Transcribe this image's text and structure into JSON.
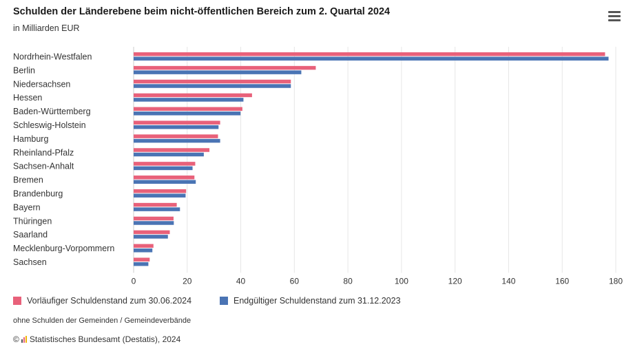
{
  "header": {
    "title": "Schulden der Länderebene beim nicht-öffentlichen Bereich zum 2. Quartal 2024",
    "subtitle": "in Milliarden EUR"
  },
  "colors": {
    "series1": "#e8617a",
    "series2": "#4a74b4",
    "grid": "#e6e6e6",
    "axis": "#999999"
  },
  "chart_data": {
    "type": "bar",
    "orientation": "horizontal",
    "categories": [
      "Nordrhein-Westfalen",
      "Berlin",
      "Niedersachsen",
      "Hessen",
      "Baden-Württemberg",
      "Schleswig-Holstein",
      "Hamburg",
      "Rheinland-Pfalz",
      "Sachsen-Anhalt",
      "Bremen",
      "Brandenburg",
      "Bayern",
      "Thüringen",
      "Saarland",
      "Mecklenburg-Vorpommern",
      "Sachsen"
    ],
    "series": [
      {
        "name": "Vorläufiger Schuldenstand zum 30.06.2024",
        "color": "#e8617a",
        "values": [
          176,
          68,
          58.7,
          44.2,
          40.6,
          32.3,
          31.5,
          28.3,
          23,
          22.7,
          19.6,
          16.1,
          14.9,
          13.5,
          7.4,
          6
        ]
      },
      {
        "name": "Endgültiger Schuldenstand zum 31.12.2023",
        "color": "#4a74b4",
        "values": [
          177.3,
          62.6,
          58.7,
          41,
          39.9,
          31.7,
          32.3,
          26.2,
          22,
          23.2,
          19.4,
          17.3,
          15,
          12.8,
          7,
          5.5
        ]
      }
    ],
    "xlim": [
      0,
      180
    ],
    "xticks": [
      "0",
      "20",
      "40",
      "60",
      "80",
      "100",
      "120",
      "140",
      "160",
      "180"
    ],
    "title": "Schulden der Länderebene beim nicht-öffentlichen Bereich zum 2. Quartal 2024",
    "xlabel": "",
    "ylabel": "",
    "grid": true,
    "legend_position": "bottom"
  },
  "legend": {
    "item1": "Vorläufiger Schuldenstand zum 30.06.2024",
    "item2": "Endgültiger Schuldenstand zum 31.12.2023"
  },
  "footnote": "ohne Schulden der Gemeinden / Gemeindeverbände",
  "footer": {
    "copyright": "©",
    "source": "Statistisches Bundesamt (Destatis), 2024"
  }
}
